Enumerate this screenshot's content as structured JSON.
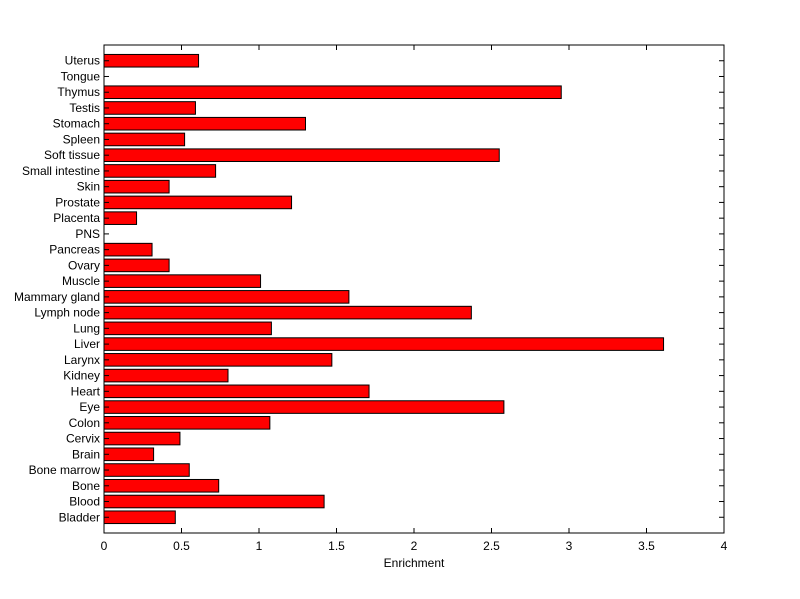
{
  "chart_data": {
    "type": "bar",
    "orientation": "horizontal",
    "categories": [
      "Uterus",
      "Tongue",
      "Thymus",
      "Testis",
      "Stomach",
      "Spleen",
      "Soft tissue",
      "Small intestine",
      "Skin",
      "Prostate",
      "Placenta",
      "PNS",
      "Pancreas",
      "Ovary",
      "Muscle",
      "Mammary gland",
      "Lymph node",
      "Lung",
      "Liver",
      "Larynx",
      "Kidney",
      "Heart",
      "Eye",
      "Colon",
      "Cervix",
      "Brain",
      "Bone marrow",
      "Bone",
      "Blood",
      "Bladder"
    ],
    "values": [
      0.61,
      0,
      2.95,
      0.59,
      1.3,
      0.52,
      2.55,
      0.72,
      0.42,
      1.21,
      0.21,
      0,
      0.31,
      0.42,
      1.01,
      1.58,
      2.37,
      1.08,
      3.61,
      1.47,
      0.8,
      1.71,
      2.58,
      1.07,
      0.49,
      0.32,
      0.55,
      0.74,
      1.42,
      0.46
    ],
    "xlabel": "Enrichment",
    "ylabel": "",
    "title": "",
    "xlim": [
      0,
      4
    ],
    "xticks": [
      "0",
      "0.5",
      "1",
      "1.5",
      "2",
      "2.5",
      "3",
      "3.5",
      "4"
    ],
    "bar_color": "#ff0000",
    "edge_color": "#000000",
    "grid": false,
    "legend": "none"
  }
}
